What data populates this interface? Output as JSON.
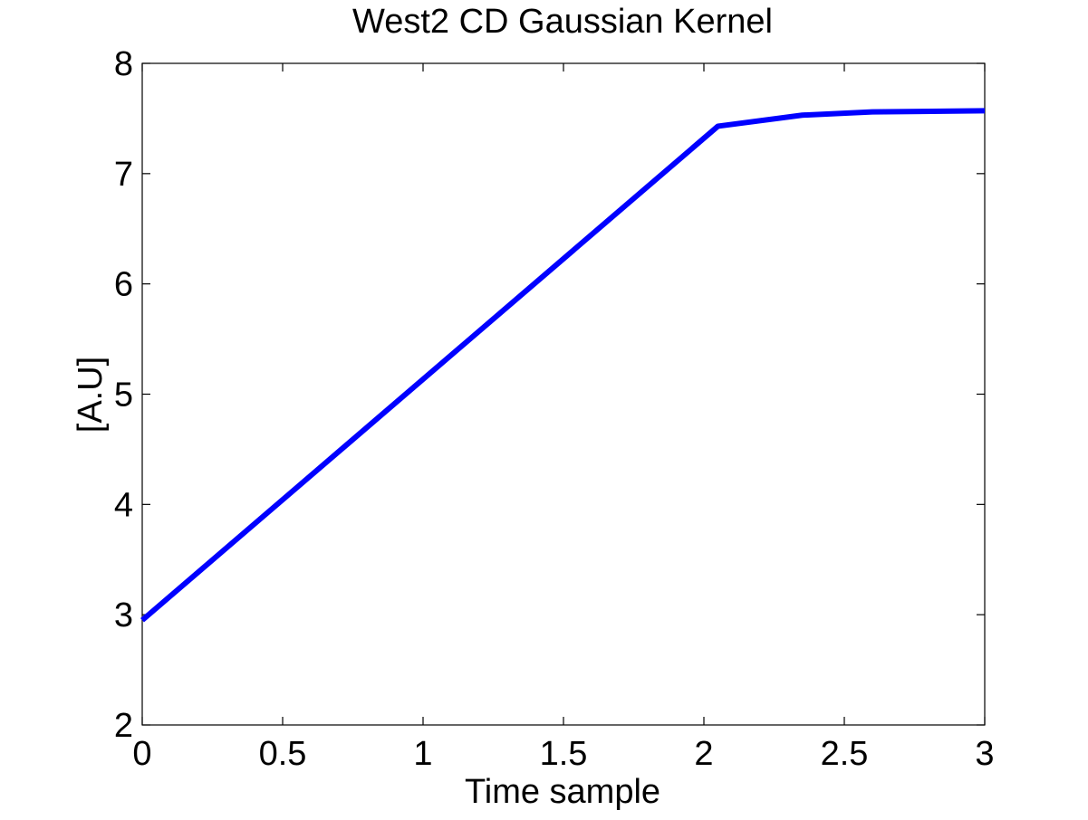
{
  "chart_data": {
    "type": "line",
    "title": "West2 CD Gaussian Kernel",
    "xlabel": "Time sample",
    "ylabel": "[A.U]",
    "xlim": [
      0,
      3
    ],
    "ylim": [
      2,
      8
    ],
    "xticks": [
      0,
      0.5,
      1,
      1.5,
      2,
      2.5,
      3
    ],
    "xtick_labels": [
      "0",
      "0.5",
      "1",
      "1.5",
      "2",
      "2.5",
      "3"
    ],
    "yticks": [
      2,
      3,
      4,
      5,
      6,
      7,
      8
    ],
    "ytick_labels": [
      "2",
      "3",
      "4",
      "5",
      "6",
      "7",
      "8"
    ],
    "grid": false,
    "legend": "none",
    "series": [
      {
        "color": "#0000ff",
        "x": [
          0,
          2.05,
          2.35,
          2.6,
          3.0
        ],
        "y": [
          2.95,
          7.43,
          7.53,
          7.56,
          7.57
        ]
      }
    ]
  }
}
